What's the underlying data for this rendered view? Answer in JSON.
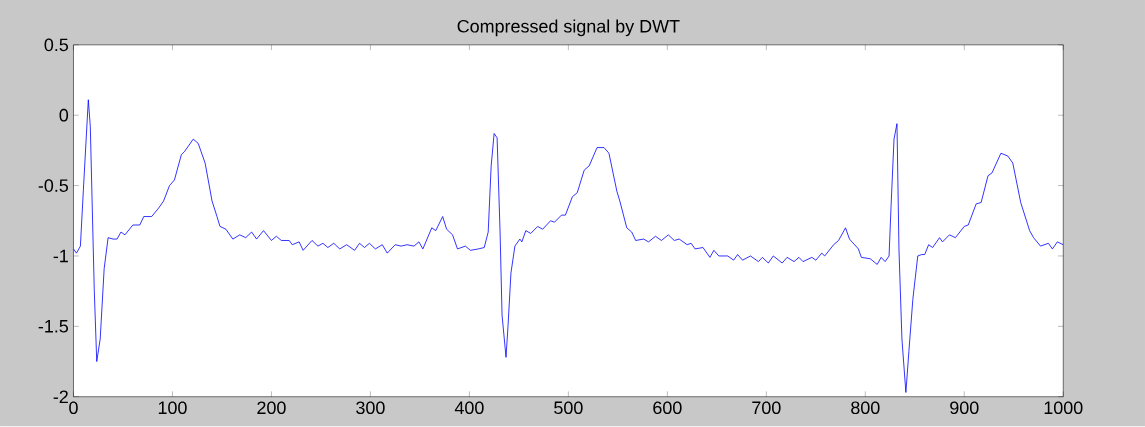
{
  "chart_data": {
    "type": "line",
    "title": "Compressed signal by DWT",
    "x": [
      0,
      3,
      7,
      10,
      15,
      17,
      21,
      23.5,
      27,
      31,
      35,
      40,
      44,
      48,
      52,
      60,
      67,
      71,
      79,
      86,
      91,
      97,
      102,
      109,
      112,
      121,
      126,
      133,
      140,
      145,
      148,
      154,
      161,
      168,
      174,
      180,
      185,
      192,
      200,
      205,
      210,
      218,
      221,
      228,
      232,
      241,
      247,
      252,
      257,
      263,
      269,
      276,
      284,
      289,
      294,
      299,
      305,
      312,
      317,
      325,
      331,
      337,
      344,
      349,
      353,
      362,
      366,
      373,
      377,
      383,
      388,
      396,
      401,
      409,
      415,
      419,
      422,
      425,
      428,
      431,
      433,
      437,
      439,
      442,
      446,
      451,
      453,
      457,
      462,
      469,
      474,
      482,
      486,
      493,
      497,
      504,
      509,
      516,
      521,
      529,
      536,
      541,
      549,
      552,
      559,
      564,
      568,
      576,
      581,
      588,
      594,
      601,
      607,
      612,
      620,
      624,
      628,
      636,
      643,
      647,
      652,
      661,
      667,
      671,
      676,
      684,
      692,
      696,
      702,
      707,
      716,
      721,
      728,
      733,
      737,
      746,
      750,
      756,
      759,
      768,
      773,
      780,
      784,
      793,
      796,
      805,
      812,
      816,
      820,
      824,
      826,
      829,
      832,
      834,
      837,
      841,
      844,
      848,
      853,
      857,
      860,
      864,
      868,
      875,
      878,
      885,
      891,
      900,
      904,
      912,
      917,
      924,
      928,
      937,
      944,
      949,
      957,
      966,
      970,
      977,
      985,
      989,
      994,
      1000
    ],
    "values": [
      -0.95,
      -0.98,
      -0.93,
      -0.53,
      0.11,
      -0.08,
      -1.24,
      -1.75,
      -1.59,
      -1.09,
      -0.87,
      -0.88,
      -0.88,
      -0.83,
      -0.85,
      -0.78,
      -0.78,
      -0.72,
      -0.72,
      -0.66,
      -0.61,
      -0.5,
      -0.46,
      -0.28,
      -0.26,
      -0.17,
      -0.2,
      -0.34,
      -0.61,
      -0.72,
      -0.79,
      -0.81,
      -0.88,
      -0.85,
      -0.87,
      -0.83,
      -0.88,
      -0.82,
      -0.89,
      -0.86,
      -0.89,
      -0.89,
      -0.92,
      -0.9,
      -0.96,
      -0.89,
      -0.93,
      -0.91,
      -0.94,
      -0.91,
      -0.95,
      -0.92,
      -0.96,
      -0.91,
      -0.94,
      -0.91,
      -0.95,
      -0.92,
      -0.98,
      -0.92,
      -0.93,
      -0.92,
      -0.93,
      -0.9,
      -0.95,
      -0.8,
      -0.82,
      -0.72,
      -0.81,
      -0.85,
      -0.95,
      -0.93,
      -0.96,
      -0.95,
      -0.94,
      -0.83,
      -0.36,
      -0.13,
      -0.16,
      -0.83,
      -1.42,
      -1.72,
      -1.5,
      -1.12,
      -0.93,
      -0.88,
      -0.9,
      -0.82,
      -0.84,
      -0.79,
      -0.81,
      -0.75,
      -0.76,
      -0.71,
      -0.71,
      -0.58,
      -0.55,
      -0.39,
      -0.36,
      -0.23,
      -0.23,
      -0.27,
      -0.54,
      -0.61,
      -0.8,
      -0.83,
      -0.89,
      -0.88,
      -0.9,
      -0.86,
      -0.89,
      -0.85,
      -0.89,
      -0.88,
      -0.92,
      -0.91,
      -0.95,
      -0.94,
      -1.01,
      -0.96,
      -1.0,
      -1.0,
      -1.03,
      -0.99,
      -1.03,
      -1.0,
      -1.04,
      -1.01,
      -1.05,
      -1.0,
      -1.05,
      -1.01,
      -1.04,
      -1.01,
      -1.04,
      -1.01,
      -1.03,
      -0.98,
      -1.0,
      -0.92,
      -0.89,
      -0.8,
      -0.88,
      -0.95,
      -1.01,
      -1.02,
      -1.06,
      -1.01,
      -1.04,
      -1.0,
      -0.65,
      -0.17,
      -0.06,
      -0.95,
      -1.59,
      -1.97,
      -1.68,
      -1.31,
      -1.0,
      -0.99,
      -0.99,
      -0.92,
      -0.94,
      -0.87,
      -0.9,
      -0.85,
      -0.87,
      -0.79,
      -0.78,
      -0.63,
      -0.62,
      -0.43,
      -0.41,
      -0.27,
      -0.29,
      -0.34,
      -0.62,
      -0.82,
      -0.87,
      -0.93,
      -0.91,
      -0.95,
      -0.9,
      -0.92
    ],
    "color": "#0000ff",
    "xlim": [
      0,
      1000
    ],
    "ylim": [
      -2,
      0.5
    ],
    "xticks": [
      0,
      100,
      200,
      300,
      400,
      500,
      600,
      700,
      800,
      900,
      1000
    ],
    "yticks": [
      -2,
      -1.5,
      -1,
      -0.5,
      0,
      0.5
    ]
  }
}
